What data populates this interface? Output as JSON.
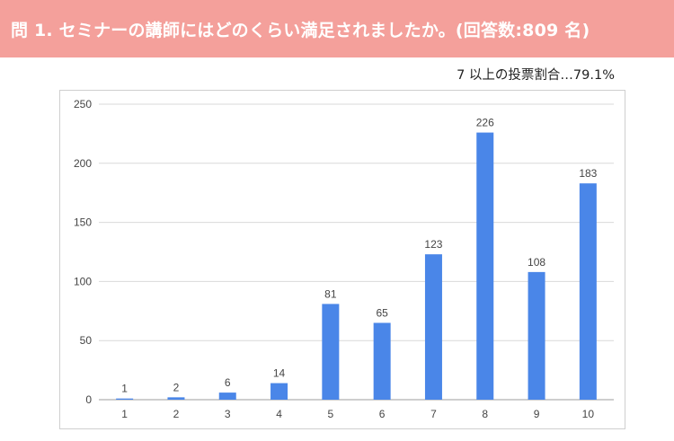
{
  "header": {
    "title": "問 1. セミナーの講師にはどのくらい満足されましたか。(回答数:809 名)"
  },
  "note": {
    "text": "7 以上の投票割合…79.1%"
  },
  "colors": {
    "header_bg": "#f4a09b",
    "bar": "#4a86e8",
    "grid": "#d9d9d9"
  },
  "chart_data": {
    "type": "bar",
    "title": "",
    "xlabel": "",
    "ylabel": "",
    "categories": [
      "1",
      "2",
      "3",
      "4",
      "5",
      "6",
      "7",
      "8",
      "9",
      "10"
    ],
    "values": [
      1,
      2,
      6,
      14,
      81,
      65,
      123,
      226,
      108,
      183
    ],
    "data_labels": true,
    "ylim": [
      0,
      250
    ],
    "yticks": [
      0,
      50,
      100,
      150,
      200,
      250
    ],
    "grid": true,
    "legend": "none"
  }
}
